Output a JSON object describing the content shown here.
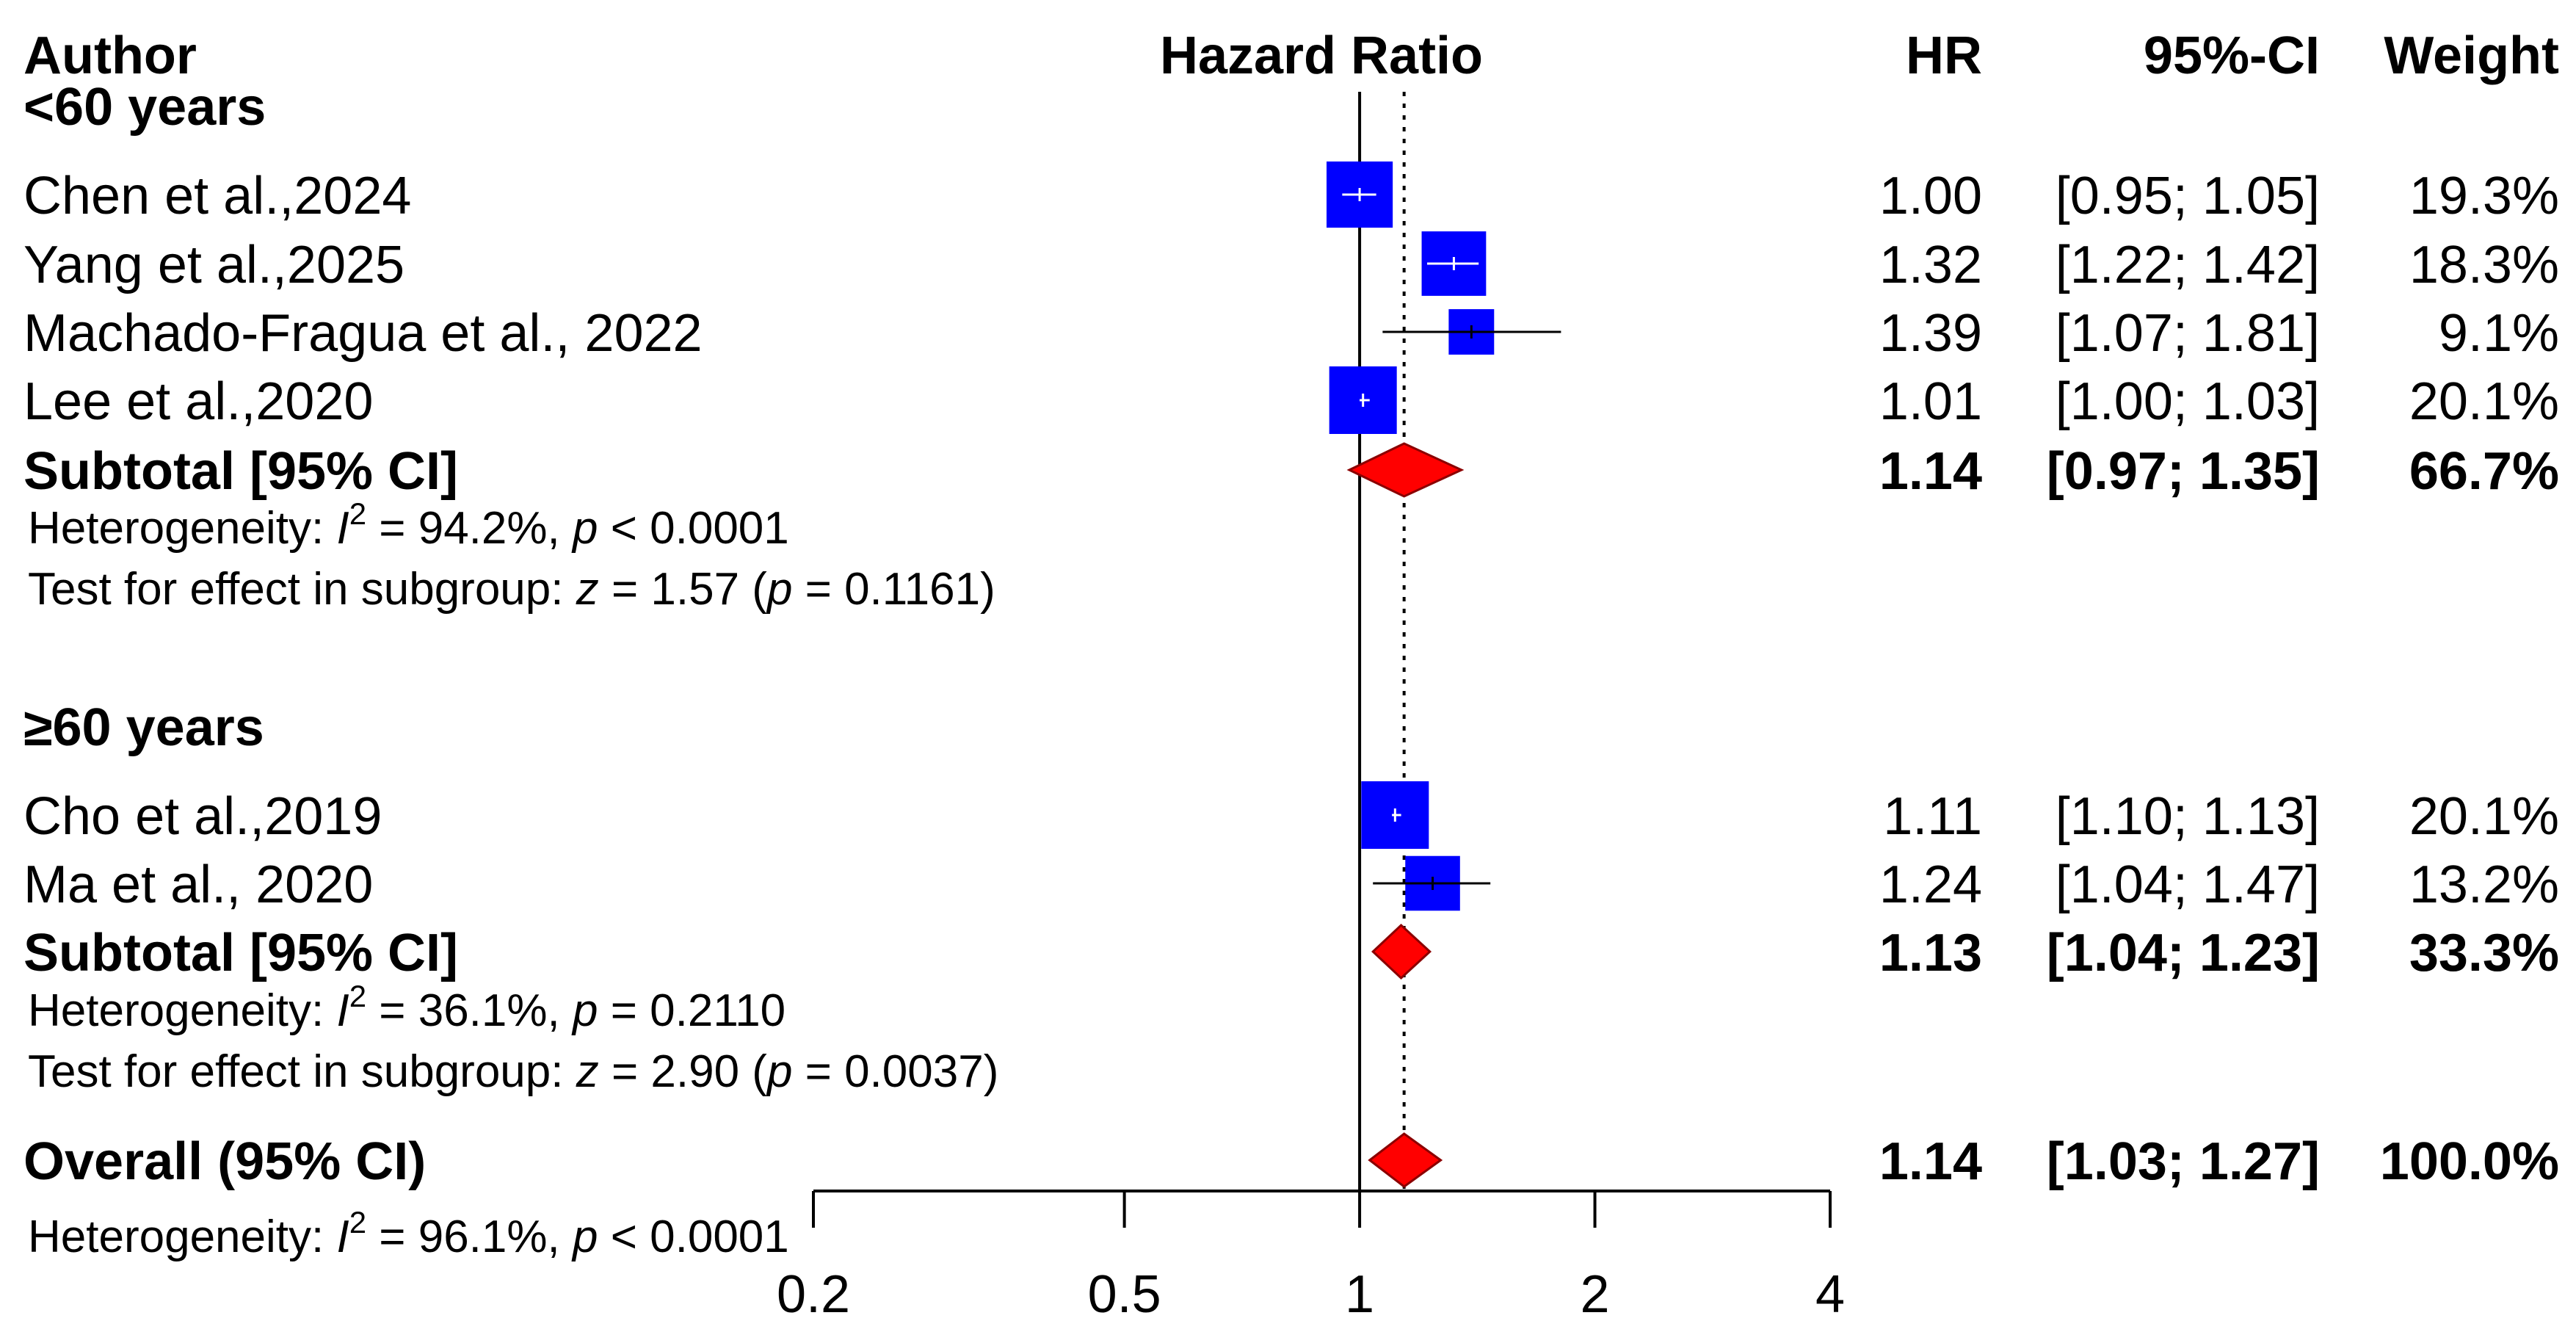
{
  "chart_data": {
    "type": "forest",
    "headers": {
      "author": "Author",
      "plot": "Hazard Ratio",
      "hr": "HR",
      "ci": "95%-CI",
      "weight": "Weight"
    },
    "x_axis": {
      "scale": "log",
      "ticks": [
        0.2,
        0.5,
        1,
        2,
        4
      ],
      "tick_labels": [
        "0.2",
        "0.5",
        "1",
        "2",
        "4"
      ],
      "range": [
        0.2,
        4
      ],
      "null_line": 1,
      "overall_line": 1.14
    },
    "groups": [
      {
        "label": "<60 years",
        "studies": [
          {
            "author": "Chen et al.,2024",
            "hr": 1.0,
            "lower": 0.95,
            "upper": 1.05,
            "weight": 19.3,
            "hr_text": "1.00",
            "ci_text": "[0.95; 1.05]",
            "weight_text": "19.3%"
          },
          {
            "author": "Yang et al.,2025",
            "hr": 1.32,
            "lower": 1.22,
            "upper": 1.42,
            "weight": 18.3,
            "hr_text": "1.32",
            "ci_text": "[1.22; 1.42]",
            "weight_text": "18.3%"
          },
          {
            "author": "Machado-Fragua et al., 2022",
            "hr": 1.39,
            "lower": 1.07,
            "upper": 1.81,
            "weight": 9.1,
            "hr_text": "1.39",
            "ci_text": "[1.07; 1.81]",
            "weight_text": "9.1%"
          },
          {
            "author": "Lee et al.,2020",
            "hr": 1.01,
            "lower": 1.0,
            "upper": 1.03,
            "weight": 20.1,
            "hr_text": "1.01",
            "ci_text": "[1.00; 1.03]",
            "weight_text": "20.1%"
          }
        ],
        "subtotal": {
          "label": "Subtotal [95% CI]",
          "hr": 1.14,
          "lower": 0.97,
          "upper": 1.35,
          "hr_text": "1.14",
          "ci_text": "[0.97; 1.35]",
          "weight_text": "66.7%"
        },
        "heterogeneity": {
          "prefix": "Heterogeneity: ",
          "sym": "I",
          "sup": "2",
          "rest": " = 94.2%, ",
          "p": "p",
          "pval": " < 0.0001"
        },
        "effect_test": {
          "prefix": "Test for effect in subgroup: ",
          "z": "z",
          "zval": " = 1.57 (",
          "p": "p",
          "pval": " = 0.1161)"
        }
      },
      {
        "label": "≥60 years",
        "studies": [
          {
            "author": "Cho et al.,2019",
            "hr": 1.11,
            "lower": 1.1,
            "upper": 1.13,
            "weight": 20.1,
            "hr_text": "1.11",
            "ci_text": "[1.10; 1.13]",
            "weight_text": "20.1%"
          },
          {
            "author": "Ma et al., 2020",
            "hr": 1.24,
            "lower": 1.04,
            "upper": 1.47,
            "weight": 13.2,
            "hr_text": "1.24",
            "ci_text": "[1.04; 1.47]",
            "weight_text": "13.2%"
          }
        ],
        "subtotal": {
          "label": "Subtotal [95% CI]",
          "hr": 1.13,
          "lower": 1.04,
          "upper": 1.23,
          "hr_text": "1.13",
          "ci_text": "[1.04; 1.23]",
          "weight_text": "33.3%"
        },
        "heterogeneity": {
          "prefix": "Heterogeneity: ",
          "sym": "I",
          "sup": "2",
          "rest": " = 36.1%, ",
          "p": "p",
          "pval": " = 0.2110"
        },
        "effect_test": {
          "prefix": "Test for effect in subgroup: ",
          "z": "z",
          "zval": " = 2.90 (",
          "p": "p",
          "pval": " = 0.0037)"
        }
      }
    ],
    "overall": {
      "label": "Overall (95% CI)",
      "hr": 1.14,
      "lower": 1.03,
      "upper": 1.27,
      "hr_text": "1.14",
      "ci_text": "[1.03; 1.27]",
      "weight_text": "100.0%",
      "heterogeneity": {
        "prefix": "Heterogeneity: ",
        "sym": "I",
        "sup": "2",
        "rest": " = 96.1%, ",
        "p": "p",
        "pval": " < 0.0001"
      }
    },
    "colors": {
      "square": "#0000ff",
      "diamond": "#ff0000",
      "diamond_border": "#8b0000",
      "line": "#000000"
    }
  }
}
